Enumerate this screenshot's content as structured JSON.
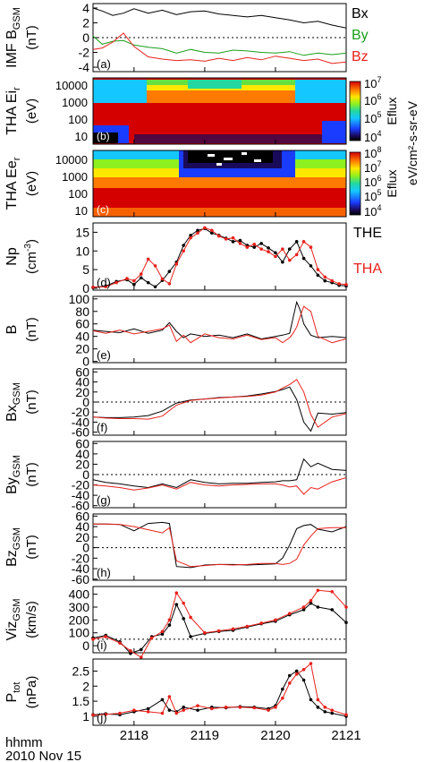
{
  "time_axis": {
    "label_line1": "hhmm",
    "label_line2": "2010 Nov 15",
    "ticks": [
      "2118",
      "2119",
      "2120",
      "2121"
    ],
    "range_hhmm_decimal": [
      2117.42,
      2121.0
    ]
  },
  "legend_top": {
    "bx": "Bx",
    "by": "By",
    "bz": "Bz"
  },
  "legend_bottom": {
    "the": "THE",
    "tha": "THA"
  },
  "colors": {
    "black": "#000000",
    "red": "#e8211c",
    "green": "#1a9e1a"
  },
  "spectrograms": {
    "b": {
      "ylabel": "THA Ei",
      "ylabel_sub": "r",
      "ylabel_unit": "(eV)",
      "letter": "(b)",
      "yticks": [
        "10000",
        "1000",
        "100",
        "10"
      ],
      "cbar_ticks_exp": [
        "7",
        "6",
        "5",
        "4"
      ],
      "cbar_label": "Eflux"
    },
    "c": {
      "ylabel": "THA Ee",
      "ylabel_sub": "r",
      "ylabel_unit": "(eV)",
      "letter": "(c)",
      "yticks": [
        "10000",
        "1000",
        "100",
        "10"
      ],
      "cbar_ticks_exp": [
        "8",
        "7",
        "6",
        "5",
        "4"
      ],
      "cbar_label": "Eflux"
    },
    "shared_cbar_unit": "eV/cm²-s-sr-eV",
    "cbar_base": "10"
  },
  "chart_data": [
    {
      "id": "a",
      "type": "line",
      "letter": "(a)",
      "ylabel": "IMF B",
      "ylabel_sub": "GSM",
      "yunit": "(nT)",
      "ylim": [
        -4.6,
        4.6
      ],
      "yticks": [
        4,
        2,
        0,
        -2,
        -4
      ],
      "zero_line": true,
      "x": [
        2117.42,
        2117.55,
        2117.7,
        2117.85,
        2118.0,
        2118.2,
        2118.4,
        2118.6,
        2118.8,
        2119.0,
        2119.2,
        2119.4,
        2119.6,
        2119.8,
        2120.0,
        2120.2,
        2120.4,
        2120.6,
        2120.8,
        2121.0
      ],
      "series": [
        {
          "name": "Bx",
          "color": "black",
          "values": [
            4.0,
            3.6,
            3.0,
            3.3,
            3.9,
            3.3,
            3.7,
            3.1,
            3.5,
            3.6,
            3.2,
            3.0,
            2.8,
            3.0,
            2.7,
            2.4,
            2.0,
            2.2,
            1.7,
            1.3
          ]
        },
        {
          "name": "By",
          "color": "green",
          "values": [
            0.2,
            -0.9,
            -0.5,
            -0.4,
            -1.0,
            -1.3,
            -1.5,
            -2.1,
            -1.6,
            -2.0,
            -2.1,
            -1.7,
            -1.8,
            -2.0,
            -2.1,
            -1.9,
            -2.4,
            -2.1,
            -2.3,
            -2.1
          ]
        },
        {
          "name": "Bz",
          "color": "red",
          "values": [
            -1.6,
            -1.4,
            -0.6,
            0.6,
            -1.2,
            -2.6,
            -2.9,
            -3.1,
            -3.0,
            -3.2,
            -2.8,
            -3.1,
            -2.7,
            -3.0,
            -2.5,
            -2.8,
            -3.1,
            -2.9,
            -3.5,
            -3.3
          ]
        }
      ]
    },
    {
      "id": "d",
      "type": "line",
      "letter": "(d)",
      "ylabel": "Np",
      "yunit": "(cm",
      "yunit_sup": "-3",
      "yunit_end": ")",
      "ylim": [
        -0.5,
        17.5
      ],
      "yticks": [
        15,
        10,
        5,
        0
      ],
      "x": [
        2117.42,
        2117.6,
        2117.75,
        2117.9,
        2118.0,
        2118.1,
        2118.2,
        2118.3,
        2118.4,
        2118.5,
        2118.6,
        2118.7,
        2118.8,
        2118.9,
        2119.0,
        2119.1,
        2119.2,
        2119.3,
        2119.4,
        2119.5,
        2119.6,
        2119.7,
        2119.8,
        2119.9,
        2120.0,
        2120.1,
        2120.2,
        2120.3,
        2120.4,
        2120.5,
        2120.6,
        2120.7,
        2120.8,
        2120.9,
        2121.0
      ],
      "series": [
        {
          "name": "THE",
          "color": "black",
          "values": [
            0.2,
            0.6,
            1.8,
            2.3,
            1.0,
            2.8,
            1.5,
            0.4,
            2.1,
            4.5,
            7.0,
            11.5,
            14.2,
            15.5,
            16.0,
            14.8,
            14.2,
            13.4,
            12.5,
            12.8,
            11.5,
            11.0,
            12.0,
            10.8,
            9.5,
            7.0,
            10.5,
            12.5,
            8.0,
            6.0,
            3.5,
            2.0,
            1.5,
            0.8,
            0.6
          ]
        },
        {
          "name": "THA",
          "color": "red",
          "values": [
            0.3,
            0.4,
            1.5,
            2.6,
            2.0,
            3.8,
            7.8,
            6.0,
            2.5,
            1.2,
            6.5,
            10.0,
            13.5,
            14.8,
            16.2,
            15.5,
            14.0,
            13.2,
            13.5,
            12.0,
            11.0,
            11.8,
            10.5,
            9.8,
            8.5,
            10.5,
            7.5,
            9.0,
            12.5,
            11.0,
            5.0,
            3.0,
            2.0,
            1.2,
            1.0
          ]
        }
      ]
    },
    {
      "id": "e",
      "type": "line",
      "letter": "(e)",
      "ylabel": "B",
      "yunit": "(nT)",
      "ylim": [
        -2,
        104
      ],
      "yticks": [
        100,
        80,
        60,
        40,
        20,
        0
      ],
      "x": [
        2117.42,
        2117.6,
        2117.8,
        2118.0,
        2118.2,
        2118.4,
        2118.5,
        2118.6,
        2118.7,
        2118.8,
        2119.0,
        2119.2,
        2119.4,
        2119.6,
        2119.8,
        2120.0,
        2120.1,
        2120.2,
        2120.25,
        2120.3,
        2120.35,
        2120.4,
        2120.5,
        2120.6,
        2120.8,
        2121.0
      ],
      "series": [
        {
          "name": "THE",
          "color": "black",
          "values": [
            50,
            48,
            46,
            52,
            45,
            50,
            62,
            48,
            38,
            44,
            40,
            42,
            38,
            44,
            36,
            40,
            42,
            45,
            70,
            95,
            82,
            60,
            42,
            38,
            40,
            38
          ]
        },
        {
          "name": "THA",
          "color": "red",
          "values": [
            49,
            45,
            50,
            44,
            48,
            52,
            58,
            32,
            42,
            30,
            44,
            38,
            36,
            42,
            35,
            38,
            30,
            38,
            45,
            55,
            72,
            88,
            80,
            40,
            30,
            36
          ]
        }
      ]
    },
    {
      "id": "f",
      "type": "line",
      "letter": "(f)",
      "ylabel": "Bx",
      "ylabel_sub": "GSM",
      "yunit": "(nT)",
      "ylim": [
        -66,
        66
      ],
      "yticks": [
        60,
        40,
        20,
        0,
        -20,
        -40,
        -60
      ],
      "zero_line": true,
      "x": [
        2117.42,
        2117.6,
        2117.8,
        2118.0,
        2118.2,
        2118.4,
        2118.6,
        2118.8,
        2119.0,
        2119.2,
        2119.4,
        2119.6,
        2119.8,
        2120.0,
        2120.1,
        2120.2,
        2120.3,
        2120.4,
        2120.5,
        2120.6,
        2120.8,
        2121.0
      ],
      "series": [
        {
          "name": "THE",
          "color": "black",
          "values": [
            -30,
            -31,
            -31,
            -30,
            -27,
            -18,
            -2,
            4,
            6,
            9,
            10,
            12,
            16,
            21,
            25,
            30,
            5,
            -40,
            -58,
            -22,
            -24,
            -21
          ]
        },
        {
          "name": "THA",
          "color": "red",
          "values": [
            -30,
            -32,
            -33,
            -33,
            -34,
            -28,
            -6,
            3,
            6,
            8,
            10,
            11,
            14,
            20,
            28,
            35,
            45,
            20,
            -25,
            -50,
            -30,
            -23
          ]
        }
      ]
    },
    {
      "id": "g",
      "type": "line",
      "letter": "(g)",
      "ylabel": "By",
      "ylabel_sub": "GSM",
      "yunit": "(nT)",
      "ylim": [
        -64,
        64
      ],
      "yticks": [
        60,
        40,
        20,
        0,
        -20,
        -40,
        -60
      ],
      "zero_line": true,
      "x": [
        2117.42,
        2117.6,
        2117.8,
        2118.0,
        2118.2,
        2118.4,
        2118.6,
        2118.8,
        2119.0,
        2119.2,
        2119.4,
        2119.6,
        2119.8,
        2120.0,
        2120.1,
        2120.2,
        2120.3,
        2120.4,
        2120.5,
        2120.6,
        2120.8,
        2121.0
      ],
      "series": [
        {
          "name": "THE",
          "color": "black",
          "values": [
            -10,
            -15,
            -18,
            -22,
            -25,
            -18,
            -25,
            -10,
            -15,
            -18,
            -17,
            -17,
            -15,
            -14,
            -12,
            -12,
            -10,
            30,
            15,
            22,
            10,
            8
          ]
        },
        {
          "name": "THA",
          "color": "red",
          "values": [
            -20,
            -22,
            -25,
            -30,
            -26,
            -20,
            -28,
            -15,
            -20,
            -22,
            -20,
            -19,
            -18,
            -18,
            -20,
            -24,
            -22,
            -38,
            -25,
            -28,
            -14,
            -6
          ]
        }
      ]
    },
    {
      "id": "h",
      "type": "line",
      "letter": "(h)",
      "ylabel": "Bz",
      "ylabel_sub": "GSM",
      "yunit": "(nT)",
      "ylim": [
        -62,
        64
      ],
      "yticks": [
        60,
        40,
        20,
        0,
        -20,
        -40,
        -60
      ],
      "zero_line": true,
      "x": [
        2117.42,
        2117.6,
        2117.8,
        2118.0,
        2118.2,
        2118.4,
        2118.5,
        2118.6,
        2118.8,
        2119.0,
        2119.2,
        2119.4,
        2119.6,
        2119.8,
        2120.0,
        2120.1,
        2120.2,
        2120.3,
        2120.4,
        2120.5,
        2120.6,
        2120.8,
        2121.0
      ],
      "series": [
        {
          "name": "THE",
          "color": "black",
          "values": [
            45,
            45,
            44,
            32,
            46,
            48,
            46,
            -36,
            -38,
            -33,
            -32,
            -32,
            -33,
            -32,
            -31,
            -20,
            5,
            36,
            42,
            44,
            35,
            30,
            40
          ]
        },
        {
          "name": "THA",
          "color": "red",
          "values": [
            45,
            45,
            44,
            40,
            34,
            28,
            38,
            -25,
            -36,
            -34,
            -32,
            -33,
            -32,
            -30,
            -30,
            -32,
            -30,
            -22,
            5,
            22,
            36,
            38,
            38
          ]
        }
      ]
    },
    {
      "id": "i",
      "type": "line",
      "letter": "(i)",
      "ylabel": "Viz",
      "ylabel_sub": "GSM",
      "yunit": "(km/s)",
      "ylim": [
        -55,
        460
      ],
      "yticks": [
        400,
        300,
        200,
        100,
        0
      ],
      "ref_line": 50,
      "x": [
        2117.42,
        2117.6,
        2117.8,
        2117.95,
        2118.1,
        2118.25,
        2118.4,
        2118.5,
        2118.6,
        2118.7,
        2118.8,
        2119.0,
        2119.2,
        2119.4,
        2119.6,
        2119.8,
        2120.0,
        2120.2,
        2120.4,
        2120.5,
        2120.6,
        2120.8,
        2121.0
      ],
      "series": [
        {
          "name": "THE",
          "color": "black",
          "values": [
            60,
            80,
            30,
            -60,
            -30,
            70,
            90,
            160,
            320,
            210,
            70,
            95,
            110,
            120,
            145,
            170,
            190,
            240,
            280,
            330,
            300,
            280,
            180
          ]
        },
        {
          "name": "THA",
          "color": "red",
          "values": [
            50,
            70,
            20,
            -40,
            -90,
            60,
            110,
            200,
            410,
            330,
            220,
            100,
            115,
            130,
            150,
            175,
            200,
            250,
            300,
            350,
            430,
            420,
            300
          ]
        }
      ]
    },
    {
      "id": "j",
      "type": "line",
      "letter": "(j)",
      "ylabel": "P",
      "ylabel_sub": "tot",
      "yunit": "(nPa)",
      "ylim": [
        0.7,
        2.9
      ],
      "yticks": [
        2.5,
        2.0,
        1.5,
        1.0
      ],
      "x": [
        2117.42,
        2117.6,
        2117.8,
        2118.0,
        2118.2,
        2118.4,
        2118.5,
        2118.6,
        2118.7,
        2118.9,
        2119.1,
        2119.3,
        2119.5,
        2119.7,
        2119.9,
        2120.0,
        2120.1,
        2120.2,
        2120.3,
        2120.4,
        2120.5,
        2120.6,
        2120.7,
        2120.8,
        2121.0
      ],
      "series": [
        {
          "name": "THE",
          "color": "black",
          "values": [
            1.05,
            1.08,
            1.05,
            1.15,
            1.25,
            1.55,
            1.2,
            1.15,
            1.3,
            1.2,
            1.3,
            1.28,
            1.32,
            1.3,
            1.25,
            1.35,
            1.9,
            2.35,
            2.5,
            2.2,
            1.55,
            1.3,
            1.15,
            1.1,
            1.0
          ]
        },
        {
          "name": "THA",
          "color": "red",
          "values": [
            1.04,
            1.06,
            1.1,
            1.2,
            1.15,
            1.1,
            1.65,
            1.1,
            1.2,
            1.35,
            1.25,
            1.3,
            1.3,
            1.28,
            1.2,
            1.3,
            1.6,
            2.1,
            2.4,
            2.55,
            2.75,
            1.55,
            1.3,
            1.2,
            1.05
          ]
        }
      ]
    }
  ]
}
